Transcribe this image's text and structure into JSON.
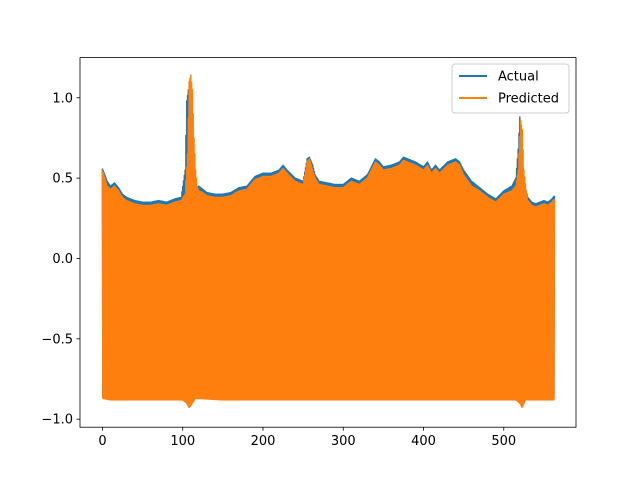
{
  "chart_data": {
    "type": "line",
    "title": "",
    "xlabel": "",
    "ylabel": "",
    "xlim": [
      -28,
      590
    ],
    "ylim": [
      -1.05,
      1.25
    ],
    "x_ticks": [
      0,
      100,
      200,
      300,
      400,
      500
    ],
    "x_tick_labels": [
      "0",
      "100",
      "200",
      "300",
      "400",
      "500"
    ],
    "y_ticks": [
      -1.0,
      -0.5,
      0.0,
      0.5,
      1.0
    ],
    "y_tick_labels": [
      "−1.0",
      "−0.5",
      "0.0",
      "0.5",
      "1.0"
    ],
    "grid": false,
    "legend_position": "top-right",
    "x_range": [
      0,
      563
    ],
    "series": [
      {
        "name": "Actual",
        "color": "#1f77b4",
        "upper_envelope": {
          "x": [
            0,
            3,
            6,
            10,
            15,
            20,
            25,
            30,
            40,
            50,
            60,
            70,
            80,
            90,
            98,
            103,
            105,
            107,
            108,
            110,
            112,
            114,
            116,
            118,
            120,
            125,
            130,
            140,
            150,
            160,
            170,
            180,
            190,
            200,
            210,
            220,
            225,
            230,
            240,
            250,
            255,
            258,
            262,
            265,
            270,
            280,
            290,
            300,
            310,
            320,
            330,
            340,
            345,
            350,
            360,
            370,
            375,
            380,
            390,
            400,
            405,
            410,
            415,
            420,
            430,
            440,
            445,
            450,
            460,
            470,
            480,
            490,
            500,
            510,
            515,
            518,
            520,
            522,
            525,
            528,
            530,
            535,
            540,
            550,
            555,
            560,
            563
          ],
          "y": [
            0.56,
            0.52,
            0.48,
            0.45,
            0.47,
            0.44,
            0.4,
            0.38,
            0.36,
            0.35,
            0.35,
            0.36,
            0.35,
            0.37,
            0.38,
            0.55,
            0.98,
            1.05,
            0.9,
            0.75,
            0.58,
            0.5,
            0.46,
            0.44,
            0.45,
            0.43,
            0.41,
            0.4,
            0.4,
            0.41,
            0.44,
            0.45,
            0.51,
            0.53,
            0.53,
            0.55,
            0.58,
            0.55,
            0.5,
            0.48,
            0.62,
            0.63,
            0.58,
            0.52,
            0.48,
            0.47,
            0.46,
            0.46,
            0.5,
            0.48,
            0.52,
            0.62,
            0.6,
            0.57,
            0.58,
            0.6,
            0.63,
            0.62,
            0.6,
            0.57,
            0.6,
            0.55,
            0.58,
            0.55,
            0.6,
            0.62,
            0.6,
            0.55,
            0.48,
            0.44,
            0.4,
            0.37,
            0.42,
            0.45,
            0.5,
            0.68,
            0.88,
            0.7,
            0.5,
            0.42,
            0.38,
            0.35,
            0.34,
            0.36,
            0.35,
            0.37,
            0.39
          ]
        },
        "lower_envelope": {
          "x": [
            0,
            10,
            50,
            100,
            105,
            108,
            112,
            150,
            200,
            250,
            300,
            350,
            400,
            450,
            500,
            515,
            520,
            525,
            563
          ],
          "y": [
            -0.86,
            -0.87,
            -0.87,
            -0.86,
            -0.84,
            -0.83,
            -0.86,
            -0.86,
            -0.86,
            -0.86,
            -0.86,
            -0.86,
            -0.86,
            -0.86,
            -0.86,
            -0.83,
            -0.82,
            -0.85,
            -0.86
          ]
        }
      },
      {
        "name": "Predicted",
        "color": "#ff7f0e",
        "upper_envelope": {
          "x": [
            0,
            3,
            6,
            10,
            15,
            20,
            25,
            30,
            40,
            50,
            60,
            70,
            80,
            90,
            98,
            103,
            106,
            108,
            110,
            112,
            114,
            116,
            118,
            120,
            125,
            130,
            140,
            150,
            160,
            170,
            180,
            190,
            200,
            210,
            220,
            225,
            230,
            240,
            250,
            255,
            258,
            262,
            265,
            270,
            280,
            290,
            300,
            310,
            320,
            330,
            340,
            345,
            350,
            360,
            370,
            375,
            380,
            390,
            400,
            405,
            410,
            415,
            420,
            430,
            440,
            445,
            450,
            460,
            470,
            480,
            490,
            500,
            510,
            515,
            518,
            521,
            523,
            525,
            528,
            530,
            535,
            540,
            550,
            555,
            560,
            563
          ],
          "y": [
            0.55,
            0.5,
            0.45,
            0.43,
            0.45,
            0.42,
            0.38,
            0.36,
            0.34,
            0.33,
            0.33,
            0.34,
            0.33,
            0.35,
            0.36,
            0.4,
            0.65,
            1.1,
            1.14,
            1.05,
            0.75,
            0.55,
            0.45,
            0.42,
            0.41,
            0.39,
            0.38,
            0.38,
            0.39,
            0.42,
            0.43,
            0.49,
            0.51,
            0.51,
            0.53,
            0.56,
            0.53,
            0.48,
            0.46,
            0.6,
            0.62,
            0.55,
            0.5,
            0.46,
            0.45,
            0.44,
            0.44,
            0.48,
            0.46,
            0.5,
            0.6,
            0.58,
            0.55,
            0.56,
            0.58,
            0.61,
            0.6,
            0.58,
            0.55,
            0.58,
            0.53,
            0.56,
            0.53,
            0.58,
            0.6,
            0.58,
            0.52,
            0.45,
            0.42,
            0.38,
            0.35,
            0.4,
            0.42,
            0.45,
            0.55,
            0.86,
            0.8,
            0.55,
            0.42,
            0.36,
            0.33,
            0.32,
            0.34,
            0.33,
            0.35,
            0.37
          ]
        },
        "lower_envelope": {
          "x": [
            0,
            10,
            50,
            100,
            105,
            108,
            112,
            116,
            150,
            200,
            250,
            300,
            350,
            400,
            450,
            500,
            515,
            520,
            523,
            527,
            563
          ],
          "y": [
            -0.87,
            -0.88,
            -0.88,
            -0.88,
            -0.9,
            -0.93,
            -0.9,
            -0.87,
            -0.88,
            -0.88,
            -0.88,
            -0.88,
            -0.88,
            -0.88,
            -0.88,
            -0.88,
            -0.88,
            -0.9,
            -0.93,
            -0.88,
            -0.88
          ]
        }
      }
    ]
  }
}
